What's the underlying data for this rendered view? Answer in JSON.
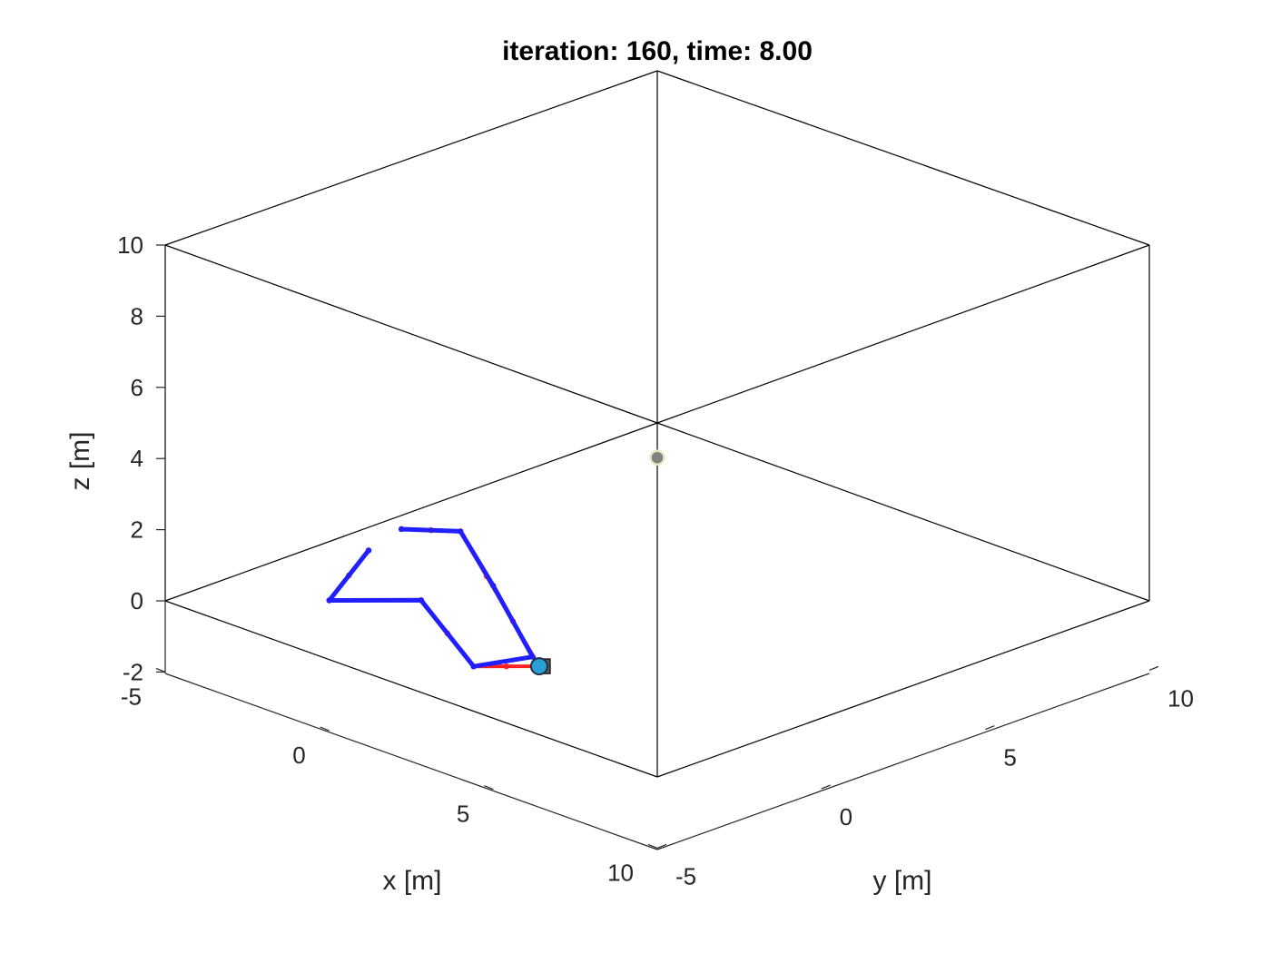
{
  "chart_data": {
    "type": "scatter",
    "title": "iteration: 160, time: 8.00",
    "xlabel": "x [m]",
    "ylabel": "y [m]",
    "zlabel": "z [m]",
    "xlim": [
      -5,
      10
    ],
    "ylim": [
      -5,
      10
    ],
    "zlim": [
      -2,
      10
    ],
    "x_ticks": [
      -5,
      0,
      5,
      10
    ],
    "y_ticks": [
      -5,
      0,
      5,
      10
    ],
    "z_ticks": [
      -2,
      0,
      2,
      4,
      6,
      8,
      10
    ],
    "x_tick_labels": [
      "-5",
      "0",
      "5",
      "10"
    ],
    "y_tick_labels": [
      "-5",
      "0",
      "5",
      "10"
    ],
    "z_tick_labels": [
      "-2",
      "0",
      "2",
      "4",
      "6",
      "8",
      "10"
    ],
    "grid": false,
    "box": true,
    "colors": {
      "red_path": "#ff2020",
      "blue_path": "#1f1fff",
      "marker_fill": "#2a9fd6",
      "target_fill": "#808080",
      "target_edge": "#e8e8c0"
    },
    "series": [
      {
        "color": "red",
        "points": [
          [
            -0.2,
            -2.6,
            2.8
          ],
          [
            0.3,
            -2.2,
            2.8
          ],
          [
            0.8,
            -1.8,
            2.8
          ],
          [
            1.6,
            -1.8,
            1.8
          ],
          [
            2.4,
            -1.8,
            0.8
          ],
          [
            3.2,
            -1.8,
            -0.2
          ],
          [
            2.7,
            -2.3,
            -0.2
          ],
          [
            2.2,
            -2.8,
            -0.2
          ],
          [
            1.3,
            -2.7,
            0.4
          ],
          [
            0.4,
            -2.6,
            1.0
          ],
          [
            -1.0,
            -4.0,
            1.0
          ],
          [
            -0.4,
            -4.0,
            1.9
          ],
          [
            0.2,
            -4.0,
            2.8
          ]
        ]
      },
      {
        "color": "blue",
        "points": [
          [
            -0.2,
            -2.6,
            2.8
          ],
          [
            0.8,
            -1.8,
            2.8
          ],
          [
            1.8,
            -1.8,
            1.6
          ],
          [
            3.0,
            -1.8,
            0.0
          ],
          [
            2.2,
            -2.8,
            -0.2
          ],
          [
            0.4,
            -2.6,
            1.0
          ],
          [
            -1.0,
            -4.0,
            1.0
          ],
          [
            0.2,
            -4.0,
            2.8
          ]
        ]
      }
    ],
    "markers": [
      {
        "name": "vehicle",
        "point": [
          3.2,
          -1.8,
          -0.2
        ]
      },
      {
        "name": "target",
        "point": [
          2.5,
          2.5,
          4.0
        ]
      }
    ]
  }
}
